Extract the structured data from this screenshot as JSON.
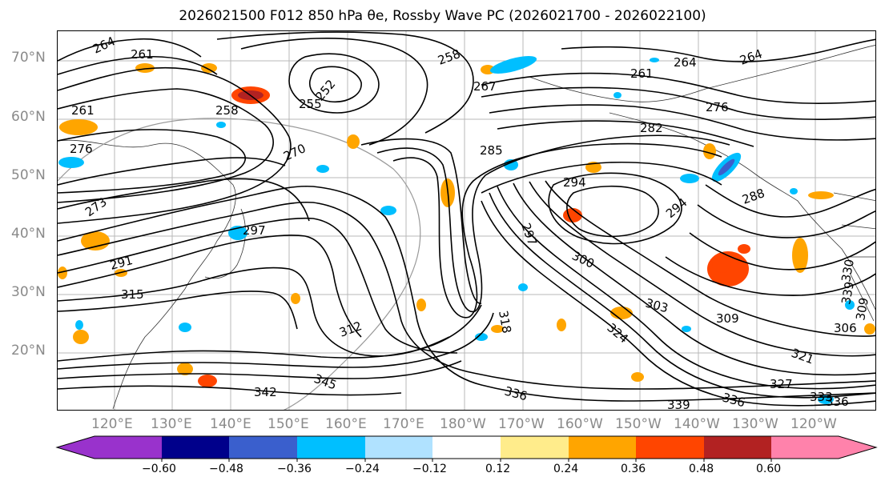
{
  "title": "2026021500 F012 850 hPa θe, Rossby Wave PC (2026021700 - 2026022100)",
  "map": {
    "lat_labels": [
      "70°N",
      "60°N",
      "50°N",
      "40°N",
      "30°N",
      "20°N"
    ],
    "lon_labels": [
      "120°E",
      "130°E",
      "140°E",
      "150°E",
      "160°E",
      "170°E",
      "180°W",
      "170°W",
      "160°W",
      "150°W",
      "140°W",
      "130°W",
      "120°W"
    ],
    "contour_labels": [
      "264",
      "261",
      "258",
      "255",
      "252",
      "261",
      "258",
      "267",
      "270",
      "273",
      "276",
      "282",
      "285",
      "276",
      "264",
      "261",
      "264",
      "294",
      "288",
      "294",
      "297",
      "300",
      "303",
      "291",
      "309",
      "312",
      "315",
      "318",
      "324",
      "330",
      "333",
      "336",
      "339",
      "336",
      "342",
      "345",
      "327",
      "336",
      "339",
      "306",
      "309",
      "321",
      "297"
    ]
  },
  "colorbar": {
    "ticks": [
      "−0.60",
      "−0.48",
      "−0.36",
      "−0.24",
      "−0.12",
      "0.12",
      "0.24",
      "0.36",
      "0.48",
      "0.60"
    ],
    "colors": [
      "#9932cc",
      "#00008b",
      "#3a5fcd",
      "#00bfff",
      "#b0e2ff",
      "#ffffff",
      "#ffec8b",
      "#ffa500",
      "#ff4500",
      "#b22222",
      "#ff82ab"
    ]
  }
}
